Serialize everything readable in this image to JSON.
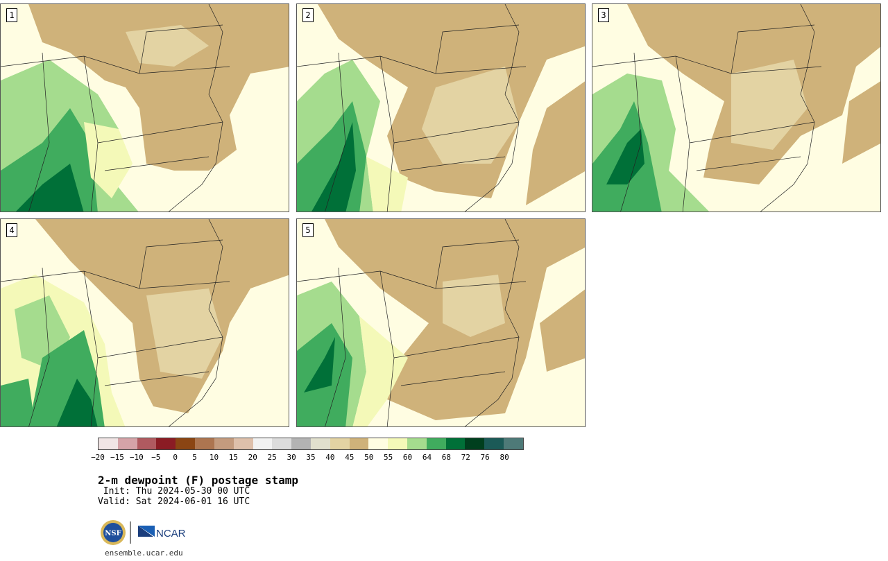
{
  "panels": [
    {
      "label": "1"
    },
    {
      "label": "2"
    },
    {
      "label": "3"
    },
    {
      "label": "4"
    },
    {
      "label": "5"
    }
  ],
  "colorbar": {
    "ticks": [
      "−20",
      "−15",
      "−10",
      "−5",
      "0",
      "5",
      "10",
      "15",
      "20",
      "25",
      "30",
      "35",
      "40",
      "45",
      "50",
      "55",
      "60",
      "64",
      "68",
      "72",
      "76",
      "80"
    ],
    "colors": [
      "#f1e5e5",
      "#d5a3a8",
      "#b05a60",
      "#8b1c24",
      "#8b4513",
      "#ad7550",
      "#c49b7e",
      "#dec0ab",
      "#f2f2f2",
      "#dcdcdc",
      "#b3b3b3",
      "#e1e0cd",
      "#e3d3a3",
      "#cfb27a",
      "#fffde2",
      "#f4f9b8",
      "#a5dc8e",
      "#40ac5e",
      "#007038",
      "#003f1e",
      "#1b5a57",
      "#4e7a78"
    ]
  },
  "title": "2-m dewpoint (F) postage stamp",
  "init": " Init: Thu 2024-05-30 00 UTC",
  "valid": "Valid: Sat 2024-06-01 16 UTC",
  "logos": {
    "nsf": "NSF",
    "ncar": "NCAR"
  },
  "site": "ensemble.ucar.edu"
}
